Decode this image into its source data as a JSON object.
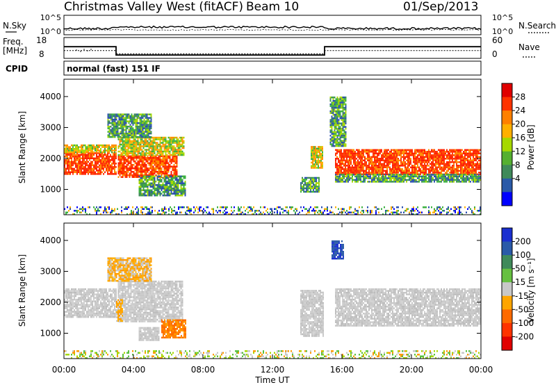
{
  "header": {
    "station": "Christmas Valley West (fitACF)",
    "beam": "Beam 10",
    "date": "01/Sep/2013"
  },
  "noise_panel": {
    "left_label": "N.Sky",
    "right_label": "N.Search",
    "left_ticks": [
      "10^5",
      "10^0"
    ],
    "right_ticks": [
      "10^5",
      "10^0"
    ]
  },
  "freq_panel": {
    "left_label_1": "Freq.",
    "left_label_2": "[MHz]",
    "right_label": "Nave",
    "left_ticks": [
      "18",
      "8"
    ],
    "right_ticks": [
      "60",
      "0"
    ]
  },
  "cpid_panel": {
    "label": "CPID",
    "program": "normal (fast) 151 IF"
  },
  "power_colorbar": {
    "label": "Power [dB]",
    "ticks": [
      "28",
      "24",
      "20",
      "16",
      "12",
      "8",
      "4"
    ],
    "colors": [
      "#e00000",
      "#ff3300",
      "#ff8000",
      "#ffb000",
      "#a6d800",
      "#55b030",
      "#3f8a5a",
      "#2a5aa8",
      "#0000ff"
    ]
  },
  "velocity_colorbar": {
    "label": "Velocity [m s⁻¹]",
    "ticks": [
      "200",
      "100",
      "50",
      "15",
      "-15",
      "-50",
      "-100",
      "-200"
    ],
    "colors": [
      "#1a2fd0",
      "#2a5aa8",
      "#3f8a5a",
      "#66c040",
      "#c8c8c8",
      "#ffa500",
      "#ff6a00",
      "#ff3300",
      "#e00000"
    ]
  },
  "colors": {
    "power_strong": "#ff2a00",
    "power_mid": "#ff8c00",
    "power_weak_green": "#3cb040",
    "power_weak_blue": "#2a4fb0",
    "velocity_gray": "#c8c8c8",
    "velocity_orange": "#ff9a00",
    "velocity_green": "#5ac040"
  },
  "chart_data": {
    "type": "heatmap",
    "xlabel": "Time UT",
    "x_ticks": [
      "00:00",
      "04:00",
      "08:00",
      "12:00",
      "16:00",
      "20:00",
      "00:00"
    ],
    "x_range_hours": [
      0,
      24
    ],
    "ylabel": "Slant Range [km]",
    "y_ticks": [
      "4000",
      "3000",
      "2000",
      "1000"
    ],
    "y_range_km": [
      180,
      4560
    ],
    "freq_mhz": [
      {
        "t_start": 0,
        "t_end": 3.0,
        "value": 15
      },
      {
        "t_start": 3.0,
        "t_end": 15.0,
        "value": 10
      },
      {
        "t_start": 15.0,
        "t_end": 24,
        "value": 15
      }
    ],
    "nave": [
      {
        "t_start": 0,
        "t_end": 3.0,
        "value": 24
      },
      {
        "t_start": 3.0,
        "t_end": 15.0,
        "value": 14
      },
      {
        "t_start": 15.0,
        "t_end": 24,
        "value": 24
      }
    ],
    "power_regions": [
      {
        "t_start": 0,
        "t_end": 3.0,
        "range_km": [
          1500,
          2200
        ],
        "level": "strong"
      },
      {
        "t_start": 0,
        "t_end": 3.0,
        "range_km": [
          2200,
          2450
        ],
        "level": "mid"
      },
      {
        "t_start": 3.1,
        "t_end": 6.5,
        "range_km": [
          1400,
          2100
        ],
        "level": "strong"
      },
      {
        "t_start": 3.1,
        "t_end": 6.9,
        "range_km": [
          2100,
          2700
        ],
        "level": "mid"
      },
      {
        "t_start": 2.5,
        "t_end": 5.0,
        "range_km": [
          2700,
          3450
        ],
        "level": "weak"
      },
      {
        "t_start": 4.3,
        "t_end": 7.0,
        "range_km": [
          800,
          1450
        ],
        "level": "weak"
      },
      {
        "t_start": 13.6,
        "t_end": 14.7,
        "range_km": [
          900,
          1400
        ],
        "level": "weak"
      },
      {
        "t_start": 14.2,
        "t_end": 14.9,
        "range_km": [
          1700,
          2400
        ],
        "level": "mid"
      },
      {
        "t_start": 15.3,
        "t_end": 16.2,
        "range_km": [
          2400,
          4000
        ],
        "level": "weak"
      },
      {
        "t_start": 15.6,
        "t_end": 24,
        "range_km": [
          1500,
          2300
        ],
        "level": "strong"
      },
      {
        "t_start": 15.6,
        "t_end": 24,
        "range_km": [
          1250,
          1500
        ],
        "level": "weak"
      },
      {
        "t_start": 0,
        "t_end": 24,
        "range_km": [
          200,
          450
        ],
        "level": "ground"
      }
    ],
    "velocity_regions": [
      {
        "t_start": 0,
        "t_end": 3.0,
        "range_km": [
          1500,
          2450
        ],
        "class": "-15 to 15"
      },
      {
        "t_start": 3.1,
        "t_end": 6.8,
        "range_km": [
          1400,
          2700
        ],
        "class": "-15 to 15"
      },
      {
        "t_start": 3.0,
        "t_end": 3.4,
        "range_km": [
          1400,
          2100
        ],
        "class": "-50 to -15"
      },
      {
        "t_start": 2.5,
        "t_end": 5.0,
        "range_km": [
          2700,
          3450
        ],
        "class": "-50 to -15"
      },
      {
        "t_start": 5.6,
        "t_end": 7.0,
        "range_km": [
          850,
          1450
        ],
        "class": "-100 to -50"
      },
      {
        "t_start": 4.3,
        "t_end": 5.5,
        "range_km": [
          800,
          1200
        ],
        "class": "-15 to 15"
      },
      {
        "t_start": 13.6,
        "t_end": 14.9,
        "range_km": [
          900,
          2400
        ],
        "class": "-15 to 15"
      },
      {
        "t_start": 15.4,
        "t_end": 16.1,
        "range_km": [
          3400,
          4000
        ],
        "class": "100 to 200"
      },
      {
        "t_start": 15.6,
        "t_end": 24,
        "range_km": [
          1250,
          2450
        ],
        "class": "-15 to 15"
      },
      {
        "t_start": 0,
        "t_end": 24,
        "range_km": [
          200,
          450
        ],
        "class": "15 to 50"
      }
    ]
  }
}
